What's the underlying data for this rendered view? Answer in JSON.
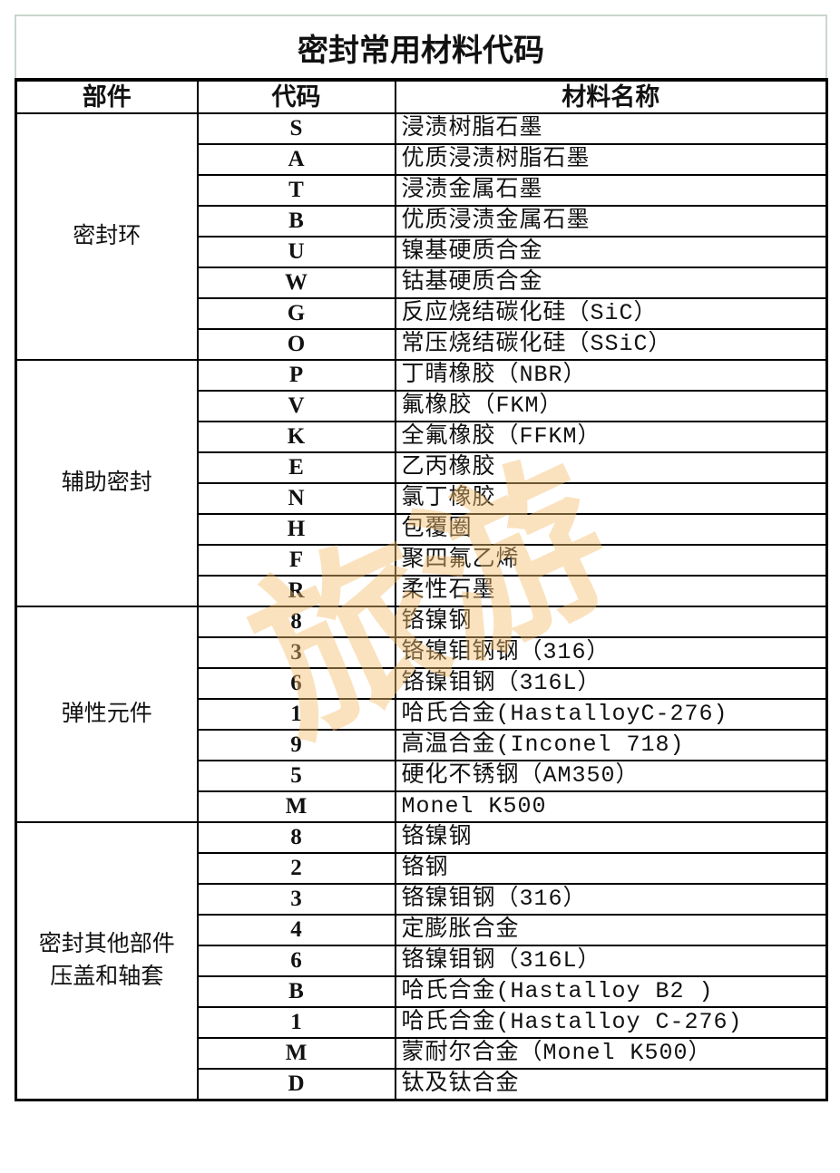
{
  "title": "密封常用材料代码",
  "headers": [
    "部件",
    "代码",
    "材料名称"
  ],
  "groups": [
    {
      "part": [
        "密封环"
      ],
      "rows": [
        {
          "code": "S",
          "name": "浸渍树脂石墨"
        },
        {
          "code": "A",
          "name": "优质浸渍树脂石墨"
        },
        {
          "code": "T",
          "name": "浸渍金属石墨"
        },
        {
          "code": "B",
          "name": "优质浸渍金属石墨"
        },
        {
          "code": "U",
          "name": "镍基硬质合金"
        },
        {
          "code": "W",
          "name": "钴基硬质合金"
        },
        {
          "code": "G",
          "name": "反应烧结碳化硅（SiC）"
        },
        {
          "code": "O",
          "name": "常压烧结碳化硅（SSiC）"
        }
      ]
    },
    {
      "part": [
        "辅助密封"
      ],
      "rows": [
        {
          "code": "P",
          "name": "丁晴橡胶（NBR）"
        },
        {
          "code": "V",
          "name": "氟橡胶（FKM）"
        },
        {
          "code": "K",
          "name": "全氟橡胶（FFKM）"
        },
        {
          "code": "E",
          "name": "乙丙橡胶"
        },
        {
          "code": "N",
          "name": "氯丁橡胶"
        },
        {
          "code": "H",
          "name": "包覆圈"
        },
        {
          "code": "F",
          "name": "聚四氟乙烯"
        },
        {
          "code": "R",
          "name": "柔性石墨"
        }
      ]
    },
    {
      "part": [
        "弹性元件"
      ],
      "rows": [
        {
          "code": "8",
          "name": "铬镍钢"
        },
        {
          "code": "3",
          "name": "铬镍钼钢钢（316）"
        },
        {
          "code": "6",
          "name": "铬镍钼钢（316L）"
        },
        {
          "code": "1",
          "name": "哈氏合金(HastalloyC-276)"
        },
        {
          "code": "9",
          "name": "高温合金(Inconel 718)"
        },
        {
          "code": "5",
          "name": "硬化不锈钢（AM350）"
        },
        {
          "code": "M",
          "name": "Monel K500"
        }
      ]
    },
    {
      "part": [
        "密封其他部件",
        "压盖和轴套"
      ],
      "rows": [
        {
          "code": "8",
          "name": "铬镍钢"
        },
        {
          "code": "2",
          "name": "铬钢"
        },
        {
          "code": "3",
          "name": "铬镍钼钢（316）"
        },
        {
          "code": "4",
          "name": "定膨胀合金"
        },
        {
          "code": "6",
          "name": "铬镍钼钢（316L）"
        },
        {
          "code": "B",
          "name": "哈氏合金(Hastalloy B2 )"
        },
        {
          "code": "1",
          "name": "哈氏合金(Hastalloy C-276)"
        },
        {
          "code": "M",
          "name": "蒙耐尔合金（Monel K500）"
        },
        {
          "code": "D",
          "name": "钛及钛合金"
        }
      ]
    }
  ],
  "watermark": "旅游",
  "colors": {
    "watermark": "#f5be6e",
    "title_border": "#c9d6cc"
  }
}
